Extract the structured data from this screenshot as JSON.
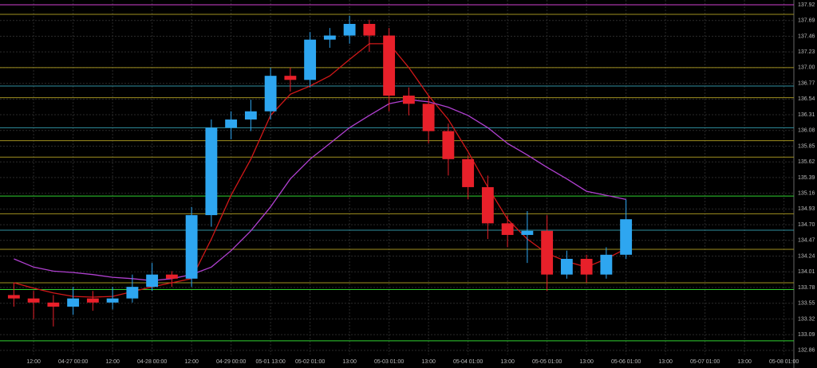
{
  "chart_data": {
    "type": "candlestick",
    "categories": [
      null,
      "12:00",
      null,
      "04-27 00:00",
      null,
      "12:00",
      null,
      "04-28 00:00",
      null,
      "12:00",
      null,
      "04-29 00:00",
      null,
      "05-01 13:00",
      null,
      "05-02 01:00",
      null,
      "13:00",
      null,
      "05-03 01:00",
      null,
      "13:00",
      null,
      "05-04 01:00",
      null,
      "13:00",
      null,
      "05-05 01:00",
      null,
      "13:00",
      null,
      "05-06 01:00",
      null,
      "13:00",
      null,
      "05-07 01:00",
      null,
      "13:00",
      null,
      "05-08 01:00"
    ],
    "open": [
      133.67,
      133.62,
      133.56,
      133.5,
      133.62,
      133.56,
      133.62,
      133.79,
      133.97,
      133.91,
      134.84,
      136.12,
      136.24,
      136.36,
      136.88,
      136.82,
      137.41,
      137.47,
      137.64,
      137.47,
      136.59,
      136.47,
      136.07,
      135.66,
      135.25,
      134.72,
      134.55,
      134.61,
      133.97,
      134.2,
      133.97,
      134.26,
      null,
      null,
      null,
      null,
      null,
      null,
      null,
      null
    ],
    "high": [
      133.85,
      133.73,
      133.67,
      133.79,
      133.73,
      133.79,
      133.97,
      134.14,
      134.02,
      134.96,
      136.24,
      136.36,
      136.53,
      137.0,
      137.0,
      137.52,
      137.58,
      137.76,
      137.7,
      137.58,
      136.71,
      136.59,
      136.18,
      135.72,
      135.42,
      134.84,
      134.9,
      134.84,
      134.32,
      134.26,
      134.37,
      135.07,
      null,
      null,
      null,
      null,
      null,
      null,
      null,
      null
    ],
    "low": [
      133.5,
      133.32,
      133.21,
      133.38,
      133.44,
      133.46,
      133.56,
      133.73,
      133.79,
      133.79,
      134.67,
      135.95,
      136.07,
      136.24,
      136.65,
      136.71,
      137.29,
      137.35,
      137.23,
      136.36,
      136.3,
      135.89,
      135.42,
      135.07,
      134.49,
      134.37,
      134.14,
      133.73,
      133.91,
      133.85,
      133.91,
      134.2,
      null,
      null,
      null,
      null,
      null,
      null,
      null,
      null
    ],
    "close": [
      133.62,
      133.56,
      133.5,
      133.62,
      133.56,
      133.62,
      133.79,
      133.97,
      133.91,
      134.84,
      136.12,
      136.24,
      136.36,
      136.88,
      136.82,
      137.41,
      137.47,
      137.64,
      137.47,
      136.59,
      136.47,
      136.07,
      135.66,
      135.25,
      134.72,
      134.55,
      134.61,
      133.97,
      134.2,
      133.97,
      134.26,
      134.78,
      null,
      null,
      null,
      null,
      null,
      null,
      null,
      null
    ],
    "up_color": "#2ea6f0",
    "down_color": "#e8202a",
    "series": [
      {
        "color": "#d01818",
        "values": [
          133.85,
          133.77,
          133.7,
          133.65,
          133.64,
          133.65,
          133.72,
          133.79,
          133.85,
          133.91,
          134.49,
          135.13,
          135.66,
          136.3,
          136.61,
          136.73,
          136.88,
          137.12,
          137.35,
          137.35,
          137.0,
          136.59,
          136.24,
          135.77,
          135.25,
          134.78,
          134.49,
          134.28,
          134.16,
          134.08,
          134.2,
          134.35,
          null,
          null,
          null,
          null,
          null,
          null,
          null,
          null
        ]
      },
      {
        "color": "#b040d0",
        "values": [
          134.2,
          134.08,
          134.02,
          134.0,
          133.97,
          133.93,
          133.91,
          133.88,
          133.91,
          133.97,
          134.08,
          134.32,
          134.61,
          134.96,
          135.37,
          135.66,
          135.89,
          136.12,
          136.3,
          136.47,
          136.53,
          136.5,
          136.42,
          136.3,
          136.12,
          135.89,
          135.72,
          135.54,
          135.37,
          135.19,
          135.13,
          135.07,
          null,
          null,
          null,
          null,
          null,
          null,
          null,
          null
        ]
      }
    ],
    "levels": [
      {
        "value": 137.92,
        "color": "#d040d0"
      },
      {
        "value": 137.78,
        "color": "#a09020"
      },
      {
        "value": 137.0,
        "color": "#a09020"
      },
      {
        "value": 136.56,
        "color": "#a09020"
      },
      {
        "value": 135.93,
        "color": "#a09020"
      },
      {
        "value": 135.69,
        "color": "#a09020"
      },
      {
        "value": 134.86,
        "color": "#a09020"
      },
      {
        "value": 134.34,
        "color": "#a09020"
      },
      {
        "value": 133.85,
        "color": "#a09020"
      },
      {
        "value": 135.12,
        "color": "#30d030"
      },
      {
        "value": 133.75,
        "color": "#30d030"
      },
      {
        "value": 133.0,
        "color": "#30d030"
      },
      {
        "value": 136.73,
        "color": "#3090a0"
      },
      {
        "value": 136.12,
        "color": "#3090a0"
      },
      {
        "value": 134.62,
        "color": "#3090a0"
      }
    ],
    "ylim": [
      132.8,
      137.99
    ],
    "yticks": [
      137.92,
      137.69,
      137.46,
      137.23,
      {
        "value": 137.0,
        "label": "137.00"
      },
      136.77,
      136.54,
      136.31,
      136.08,
      135.85,
      135.62,
      135.39,
      135.16,
      134.93,
      {
        "value": 134.7,
        "label": "134.70"
      },
      134.47,
      134.24,
      134.01,
      133.78,
      133.55,
      133.32,
      133.09,
      132.86
    ],
    "grid": true
  }
}
